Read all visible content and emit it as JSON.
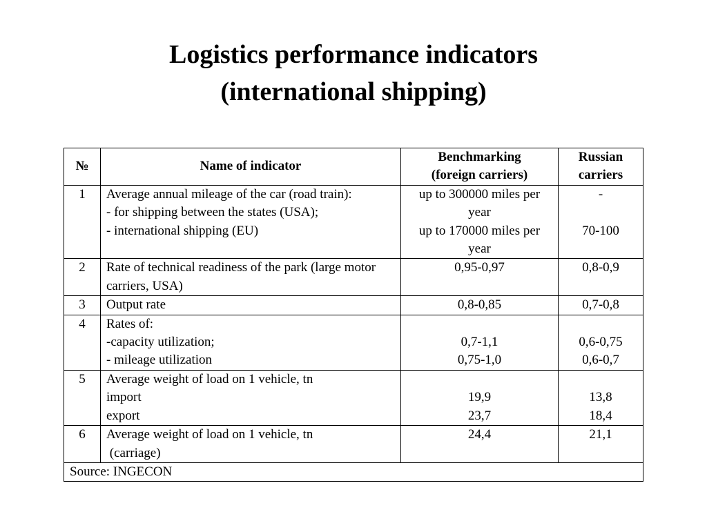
{
  "title": [
    "Logistics performance indicators",
    "(international shipping)"
  ],
  "table": {
    "header": [
      [
        "№"
      ],
      [
        "Name of indicator"
      ],
      [
        "Benchmarking",
        "(foreign carriers)"
      ],
      [
        "Russian",
        "carriers"
      ]
    ],
    "rows": [
      {
        "number": "1",
        "name": [
          "Average annual mileage of the car (road train):",
          "- for shipping between the states (USA);",
          "- international shipping (EU)"
        ],
        "benchmark": [
          "up to 300000 miles per year",
          "up to 170000 miles per year"
        ],
        "russian": [
          "-",
          "70-100"
        ]
      },
      {
        "number": "2",
        "name": [
          "Rate of technical readiness of the park (large motor carriers, USA)"
        ],
        "benchmark": [
          "0,95-0,97"
        ],
        "russian": [
          "0,8-0,9"
        ]
      },
      {
        "number": "3",
        "name": [
          "Output rate"
        ],
        "benchmark": [
          "0,8-0,85"
        ],
        "russian": [
          "0,7-0,8"
        ]
      },
      {
        "number": "4",
        "name": [
          "Rates of:",
          "-capacity utilization;",
          "- mileage utilization"
        ],
        "benchmark": [
          "0,7-1,1",
          "0,75-1,0"
        ],
        "russian": [
          "0,6-0,75",
          "0,6-0,7"
        ]
      },
      {
        "number": "5",
        "name": [
          "Average weight of load on 1 vehicle, tn",
          "import",
          "export"
        ],
        "benchmark": [
          "19,9",
          "23,7"
        ],
        "russian": [
          "13,8",
          "18,4"
        ]
      },
      {
        "number": "6",
        "name": [
          "Average weight of load on 1 vehicle, tn",
          " (carriage)"
        ],
        "benchmark": [
          "24,4"
        ],
        "russian": [
          "21,1"
        ]
      }
    ],
    "source": "Source: INGECON"
  }
}
